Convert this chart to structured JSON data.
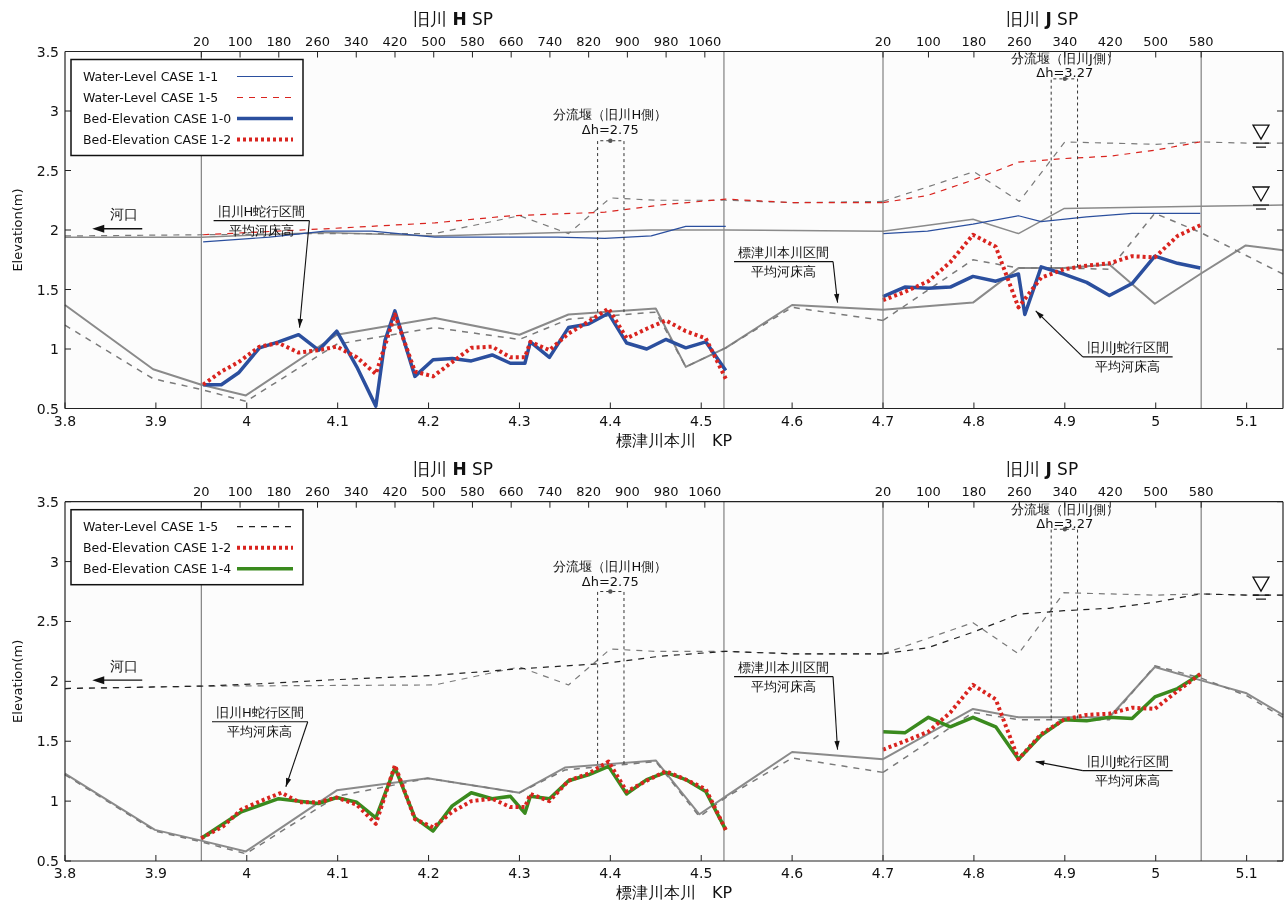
{
  "chart_data": [
    {
      "type": "line",
      "xlabel": "標津川本川　KP",
      "ylabel": "Elevation(m)",
      "x2label": "旧川 **H** SP",
      "xlim": [
        3.8,
        4.7
      ],
      "ylim": [
        0.5,
        3.5
      ],
      "xticks": [
        3.8,
        3.9,
        4,
        4.1,
        4.2,
        4.3,
        4.4,
        4.5,
        4.6
      ],
      "yticks": [
        0.5,
        1,
        1.5,
        2,
        2.5,
        3,
        3.5
      ],
      "x2lim": [
        -261.6,
        1428
      ],
      "x2ticks": [
        20,
        100,
        180,
        260,
        340,
        420,
        500,
        580,
        660,
        740,
        820,
        900,
        980,
        1060
      ],
      "legend": "top left",
      "line_style": "solid",
      "ref_lines": [
        {
          "axis": "x",
          "value": 3.95,
          "color": "#808080"
        },
        {
          "axis": "x",
          "value": 4.525,
          "color": "#808080"
        }
      ],
      "annotations": [
        "河口",
        {
          "text": "分流堰（旧川H側）\nΔh=2.75",
          "x": 4.4,
          "y": 2.75
        },
        "旧川H蛇行区間平均河床高",
        {
          "text": "標津川本川区間平均河床高",
          "x": 4.65,
          "y": 1.39
        }
      ],
      "series": [
        {
          "color": "#8a8a8a",
          "x": [
            3.8,
            3.95,
            4.086,
            4.207,
            4.394,
            4.445,
            4.527,
            4.7
          ],
          "values": [
            1.94,
            1.94,
            1.98,
            1.95,
            1.99,
            2.0,
            2.0,
            1.99
          ]
        },
        {
          "color": "#7a7a7a",
          "line_style": "dashed",
          "x": [
            3.8,
            3.95,
            4.086,
            4.207,
            4.3,
            4.354,
            4.4,
            4.45,
            4.527,
            4.6,
            4.7
          ],
          "values": [
            1.95,
            1.96,
            1.97,
            1.97,
            2.12,
            1.97,
            2.27,
            2.25,
            2.25,
            2.23,
            2.24
          ]
        },
        {
          "color": "#8a8a8a",
          "x": [
            3.8,
            3.897,
            3.95,
            3.999,
            4.099,
            4.207,
            4.3,
            4.354,
            4.394,
            4.45,
            4.483,
            4.527,
            4.6,
            4.7
          ],
          "values": [
            1.37,
            0.83,
            0.7,
            0.61,
            1.12,
            1.26,
            1.12,
            1.29,
            1.31,
            1.34,
            0.85,
            1.01,
            1.37,
            1.33
          ]
        },
        {
          "color": "#7a7a7a",
          "line_style": "dashed",
          "x": [
            3.8,
            3.897,
            3.95,
            3.999,
            4.099,
            4.207,
            4.3,
            4.354,
            4.45,
            4.483,
            4.527,
            4.6,
            4.7
          ],
          "values": [
            1.2,
            0.75,
            0.66,
            0.56,
            1.04,
            1.18,
            1.08,
            1.25,
            1.31,
            0.85,
            1.01,
            1.35,
            1.24
          ]
        },
        {
          "color": "#333333",
          "line_style": "dotted",
          "x": [
            4.386,
            4.386,
            4.415,
            4.415
          ],
          "values": [
            1.31,
            2.75,
            2.75,
            1.31
          ]
        },
        {
          "name": "Water-Level CASE 1-1",
          "color": "#2b4f9e",
          "x": [
            3.952,
            4.025,
            4.086,
            4.138,
            4.207,
            4.342,
            4.394,
            4.445,
            4.483,
            4.527
          ],
          "values": [
            1.9,
            1.94,
            1.99,
            1.99,
            1.94,
            1.94,
            1.93,
            1.95,
            2.03,
            2.03
          ]
        },
        {
          "name": "Water-Level CASE 1-5",
          "color": "#d9241f",
          "line_style": "dashed",
          "x": [
            3.952,
            4.086,
            4.207,
            4.291,
            4.394,
            4.455,
            4.527,
            4.6,
            4.7
          ],
          "values": [
            1.96,
            2.01,
            2.06,
            2.12,
            2.15,
            2.21,
            2.26,
            2.23,
            2.23
          ]
        },
        {
          "name": "Bed-Elevation CASE 1-0",
          "color": "#2b4f9e",
          "x": [
            3.952,
            3.972,
            3.991,
            4.014,
            4.035,
            4.057,
            4.079,
            4.099,
            4.121,
            4.142,
            4.152,
            4.163,
            4.185,
            4.205,
            4.226,
            4.247,
            4.27,
            4.29,
            4.306,
            4.312,
            4.333,
            4.354,
            4.376,
            4.398,
            4.418,
            4.44,
            4.461,
            4.483,
            4.505,
            4.527
          ],
          "values": [
            0.7,
            0.7,
            0.8,
            1.01,
            1.06,
            1.12,
            0.99,
            1.15,
            0.85,
            0.52,
            1.07,
            1.32,
            0.77,
            0.91,
            0.92,
            0.9,
            0.95,
            0.88,
            0.88,
            1.06,
            0.93,
            1.18,
            1.21,
            1.3,
            1.05,
            1.0,
            1.08,
            1.01,
            1.06,
            0.82
          ]
        },
        {
          "name": "Bed-Elevation CASE 1-2",
          "color": "#d9241f",
          "line_style": "dotted",
          "x": [
            3.952,
            3.972,
            3.991,
            4.014,
            4.035,
            4.057,
            4.079,
            4.099,
            4.121,
            4.142,
            4.163,
            4.185,
            4.205,
            4.226,
            4.247,
            4.27,
            4.29,
            4.306,
            4.312,
            4.333,
            4.354,
            4.376,
            4.398,
            4.418,
            4.44,
            4.461,
            4.483,
            4.505,
            4.527
          ],
          "values": [
            0.7,
            0.81,
            0.89,
            1.02,
            1.05,
            0.97,
            0.99,
            1.02,
            0.93,
            0.79,
            1.29,
            0.81,
            0.77,
            0.89,
            1.01,
            1.02,
            0.93,
            0.93,
            1.06,
            0.99,
            1.13,
            1.23,
            1.34,
            1.09,
            1.17,
            1.24,
            1.15,
            1.09,
            0.75
          ]
        }
      ]
    },
    {
      "type": "line",
      "x2label": "旧川 **J** SP",
      "xlim": [
        4.7,
        5.14
      ],
      "ylim": [
        0.5,
        3.5
      ],
      "xticks": [
        4.7,
        4.8,
        4.9,
        5,
        5.1
      ],
      "yticks": [
        0.5,
        1,
        1.5,
        2,
        2.5,
        3,
        3.5
      ],
      "tick_labels": "x",
      "x2lim": [
        20,
        724
      ],
      "x2ticks": [
        20,
        100,
        180,
        260,
        340,
        420,
        500,
        580
      ],
      "line_style": "solid",
      "ref_lines": [
        {
          "axis": "x",
          "value": 5.05,
          "color": "#808080"
        }
      ],
      "annotations": [
        {
          "text": "分流堰（旧川J側）\nΔh=3.27",
          "x": 4.9,
          "y": 3.27
        },
        "旧川J蛇行区間平均河床高"
      ],
      "series": [
        {
          "color": "#8a8a8a",
          "x": [
            4.7,
            4.799,
            4.849,
            4.899,
            5.049,
            5.14
          ],
          "values": [
            1.99,
            2.09,
            1.97,
            2.18,
            2.2,
            2.21
          ]
        },
        {
          "color": "#7a7a7a",
          "line_style": "dashed",
          "x": [
            4.7,
            4.8,
            4.85,
            4.9,
            4.95,
            5.0,
            5.05,
            5.1,
            5.14
          ],
          "values": [
            2.24,
            2.49,
            2.24,
            2.74,
            2.73,
            2.72,
            2.74,
            2.73,
            2.73
          ]
        },
        {
          "color": "#8a8a8a",
          "x": [
            4.7,
            4.799,
            4.849,
            4.899,
            4.949,
            4.999,
            5.049,
            5.099,
            5.14
          ],
          "values": [
            1.33,
            1.39,
            1.68,
            1.68,
            1.71,
            1.38,
            1.63,
            1.87,
            1.83
          ]
        },
        {
          "color": "#7a7a7a",
          "line_style": "dashed",
          "x": [
            4.7,
            4.799,
            4.849,
            4.899,
            4.949,
            4.999,
            5.049,
            5.14
          ],
          "values": [
            1.24,
            1.75,
            1.68,
            1.68,
            1.67,
            2.14,
            1.98,
            1.63
          ]
        },
        {
          "color": "#333333",
          "line_style": "dotted",
          "x": [
            4.885,
            4.885,
            4.914,
            4.914
          ],
          "values": [
            1.68,
            3.27,
            3.27,
            1.69
          ]
        },
        {
          "color": "#2b4f9e",
          "x": [
            4.7,
            4.749,
            4.799,
            4.849,
            4.874,
            4.924,
            4.974,
            5.049
          ],
          "values": [
            1.97,
            1.99,
            2.05,
            2.12,
            2.07,
            2.11,
            2.14,
            2.14
          ]
        },
        {
          "color": "#d9241f",
          "line_style": "dashed",
          "x": [
            4.7,
            4.749,
            4.799,
            4.849,
            4.899,
            4.949,
            4.999,
            5.049
          ],
          "values": [
            2.23,
            2.29,
            2.42,
            2.57,
            2.6,
            2.62,
            2.67,
            2.74
          ]
        },
        {
          "color": "#2b4f9e",
          "x": [
            4.7,
            4.724,
            4.75,
            4.774,
            4.799,
            4.824,
            4.849,
            4.856,
            4.874,
            4.899,
            4.924,
            4.949,
            4.974,
            4.999,
            5.024,
            5.049
          ],
          "values": [
            1.44,
            1.52,
            1.51,
            1.52,
            1.61,
            1.57,
            1.63,
            1.29,
            1.69,
            1.63,
            1.56,
            1.45,
            1.55,
            1.78,
            1.72,
            1.68
          ]
        },
        {
          "color": "#d9241f",
          "line_style": "dotted",
          "x": [
            4.7,
            4.724,
            4.75,
            4.774,
            4.799,
            4.824,
            4.849,
            4.874,
            4.899,
            4.924,
            4.949,
            4.974,
            4.999,
            5.024,
            5.049
          ],
          "values": [
            1.41,
            1.48,
            1.57,
            1.73,
            1.96,
            1.86,
            1.35,
            1.6,
            1.67,
            1.7,
            1.72,
            1.78,
            1.77,
            1.95,
            2.04
          ]
        }
      ]
    },
    {
      "type": "line",
      "xlabel": "標津川本川　KP",
      "ylabel": "Elevation(m)",
      "x2label": "旧川 **H** SP",
      "xlim": [
        3.8,
        4.7
      ],
      "ylim": [
        0.5,
        3.5
      ],
      "xticks": [
        3.8,
        3.9,
        4,
        4.1,
        4.2,
        4.3,
        4.4,
        4.5,
        4.6
      ],
      "yticks": [
        0.5,
        1,
        1.5,
        2,
        2.5,
        3,
        3.5
      ],
      "x2lim": [
        -261.6,
        1428
      ],
      "x2ticks": [
        20,
        100,
        180,
        260,
        340,
        420,
        500,
        580,
        660,
        740,
        820,
        900,
        980,
        1060
      ],
      "legend": "top left",
      "line_style": "solid",
      "ref_lines": [
        {
          "axis": "x",
          "value": 3.95,
          "color": "#808080"
        },
        {
          "axis": "x",
          "value": 4.525,
          "color": "#808080"
        }
      ],
      "annotations": [
        "河口",
        {
          "text": "分流堰（旧川H側）\nΔh=2.75",
          "x": 4.4,
          "y": 2.75
        },
        "旧川H蛇行区間平均河床高",
        {
          "text": "標津川本川区間平均河床高",
          "x": 4.65,
          "y": 1.43
        }
      ],
      "series": [
        {
          "color": "#7a7a7a",
          "line_style": "dashed",
          "x": [
            3.8,
            3.95,
            4.207,
            4.3,
            4.354,
            4.4,
            4.45,
            4.527,
            4.6,
            4.7
          ],
          "values": [
            1.94,
            1.96,
            1.97,
            2.12,
            1.97,
            2.27,
            2.25,
            2.25,
            2.23,
            2.23
          ]
        },
        {
          "color": "#8a8a8a",
          "x": [
            3.8,
            3.899,
            3.95,
            3.999,
            4.099,
            4.199,
            4.3,
            4.35,
            4.45,
            4.498,
            4.527,
            4.6,
            4.7
          ],
          "values": [
            1.23,
            0.76,
            0.67,
            0.58,
            1.09,
            1.19,
            1.07,
            1.28,
            1.34,
            0.89,
            1.04,
            1.41,
            1.35
          ]
        },
        {
          "color": "#7a7a7a",
          "line_style": "dashed",
          "x": [
            3.8,
            3.899,
            3.95,
            3.999,
            4.099,
            4.199,
            4.3,
            4.35,
            4.45,
            4.498,
            4.527,
            4.6,
            4.7
          ],
          "values": [
            1.22,
            0.75,
            0.66,
            0.56,
            1.04,
            1.19,
            1.07,
            1.26,
            1.33,
            0.87,
            1.03,
            1.36,
            1.24
          ]
        },
        {
          "color": "#333333",
          "line_style": "dotted",
          "x": [
            4.386,
            4.386,
            4.415,
            4.415
          ],
          "values": [
            1.31,
            2.75,
            2.75,
            1.31
          ]
        },
        {
          "name": "Water-Level CASE 1-5",
          "color": "#222222",
          "line_style": "dashed",
          "x": [
            3.8,
            3.95,
            4.015,
            4.086,
            4.207,
            4.291,
            4.394,
            4.455,
            4.527,
            4.6,
            4.7
          ],
          "values": [
            1.94,
            1.96,
            1.98,
            2.01,
            2.05,
            2.1,
            2.15,
            2.21,
            2.25,
            2.23,
            2.23
          ]
        },
        {
          "name": "Bed-Elevation CASE 1-2",
          "color": "#d9241f",
          "line_style": "dotted",
          "x": [
            3.95,
            3.974,
            3.994,
            4.015,
            4.038,
            4.058,
            4.079,
            4.099,
            4.121,
            4.142,
            4.163,
            4.185,
            4.205,
            4.226,
            4.247,
            4.27,
            4.29,
            4.306,
            4.312,
            4.333,
            4.354,
            4.376,
            4.398,
            4.418,
            4.44,
            4.461,
            4.483,
            4.505,
            4.527
          ],
          "values": [
            0.69,
            0.79,
            0.93,
            1.0,
            1.07,
            0.99,
            0.99,
            1.03,
            0.97,
            0.81,
            1.3,
            0.85,
            0.78,
            0.91,
            1.0,
            1.02,
            0.95,
            0.95,
            1.06,
            1.0,
            1.17,
            1.23,
            1.33,
            1.08,
            1.17,
            1.25,
            1.18,
            1.1,
            0.76
          ]
        },
        {
          "name": "Bed-Elevation CASE 1-4",
          "color": "#3a8a1e",
          "x": [
            3.95,
            3.994,
            4.035,
            4.079,
            4.099,
            4.121,
            4.142,
            4.163,
            4.185,
            4.205,
            4.226,
            4.247,
            4.27,
            4.29,
            4.306,
            4.312,
            4.333,
            4.354,
            4.376,
            4.398,
            4.418,
            4.44,
            4.461,
            4.483,
            4.505,
            4.527
          ],
          "values": [
            0.69,
            0.91,
            1.02,
            0.98,
            1.03,
            0.99,
            0.86,
            1.28,
            0.86,
            0.75,
            0.96,
            1.07,
            1.02,
            1.04,
            0.9,
            1.04,
            1.02,
            1.17,
            1.22,
            1.29,
            1.06,
            1.18,
            1.24,
            1.18,
            1.08,
            0.76
          ]
        }
      ]
    },
    {
      "type": "line",
      "x2label": "旧川 **J** SP",
      "xlim": [
        4.7,
        5.14
      ],
      "ylim": [
        0.5,
        3.5
      ],
      "xticks": [
        4.7,
        4.8,
        4.9,
        5,
        5.1
      ],
      "yticks": [
        0.5,
        1,
        1.5,
        2,
        2.5,
        3,
        3.5
      ],
      "tick_labels": "x",
      "x2lim": [
        20,
        724
      ],
      "x2ticks": [
        20,
        100,
        180,
        260,
        340,
        420,
        500,
        580
      ],
      "line_style": "solid",
      "ref_lines": [
        {
          "axis": "x",
          "value": 5.05,
          "color": "#808080"
        }
      ],
      "annotations": [
        {
          "text": "分流堰（旧川J側）\nΔh=3.27",
          "x": 4.9,
          "y": 3.27
        },
        "旧川J蛇行区間平均河床高"
      ],
      "series": [
        {
          "color": "#7a7a7a",
          "line_style": "dashed",
          "x": [
            4.7,
            4.799,
            4.849,
            4.899,
            4.949,
            4.999,
            5.049,
            5.1,
            5.14
          ],
          "values": [
            2.23,
            2.49,
            2.23,
            2.74,
            2.73,
            2.72,
            2.73,
            2.72,
            2.72
          ]
        },
        {
          "color": "#8a8a8a",
          "x": [
            4.7,
            4.799,
            4.849,
            4.899,
            4.949,
            4.999,
            5.049,
            5.1,
            5.14
          ],
          "values": [
            1.35,
            1.77,
            1.7,
            1.7,
            1.7,
            2.12,
            2.01,
            1.9,
            1.72
          ]
        },
        {
          "color": "#7a7a7a",
          "line_style": "dashed",
          "x": [
            4.7,
            4.799,
            4.849,
            4.899,
            4.949,
            4.999,
            5.049,
            5.1,
            5.14
          ],
          "values": [
            1.24,
            1.74,
            1.68,
            1.68,
            1.68,
            2.13,
            2.03,
            1.88,
            1.7
          ]
        },
        {
          "color": "#333333",
          "line_style": "dotted",
          "x": [
            4.885,
            4.885,
            4.914,
            4.914
          ],
          "values": [
            1.69,
            3.27,
            3.27,
            1.69
          ]
        },
        {
          "color": "#222222",
          "line_style": "dashed",
          "x": [
            4.7,
            4.749,
            4.799,
            4.849,
            4.899,
            4.949,
            4.999,
            5.049,
            5.1,
            5.14
          ],
          "values": [
            2.23,
            2.28,
            2.41,
            2.56,
            2.59,
            2.61,
            2.66,
            2.73,
            2.72,
            2.72
          ]
        },
        {
          "color": "#d9241f",
          "line_style": "dotted",
          "x": [
            4.7,
            4.724,
            4.75,
            4.774,
            4.799,
            4.824,
            4.849,
            4.874,
            4.899,
            4.924,
            4.949,
            4.974,
            4.999,
            5.024,
            5.049
          ],
          "values": [
            1.43,
            1.5,
            1.58,
            1.74,
            1.97,
            1.85,
            1.35,
            1.56,
            1.68,
            1.72,
            1.73,
            1.78,
            1.77,
            1.92,
            2.06
          ]
        },
        {
          "color": "#3a8a1e",
          "x": [
            4.7,
            4.724,
            4.75,
            4.774,
            4.799,
            4.824,
            4.849,
            4.874,
            4.899,
            4.924,
            4.949,
            4.974,
            4.999,
            5.024,
            5.049
          ],
          "values": [
            1.58,
            1.57,
            1.7,
            1.62,
            1.7,
            1.62,
            1.35,
            1.55,
            1.68,
            1.67,
            1.7,
            1.69,
            1.87,
            1.94,
            2.06
          ]
        }
      ]
    }
  ]
}
